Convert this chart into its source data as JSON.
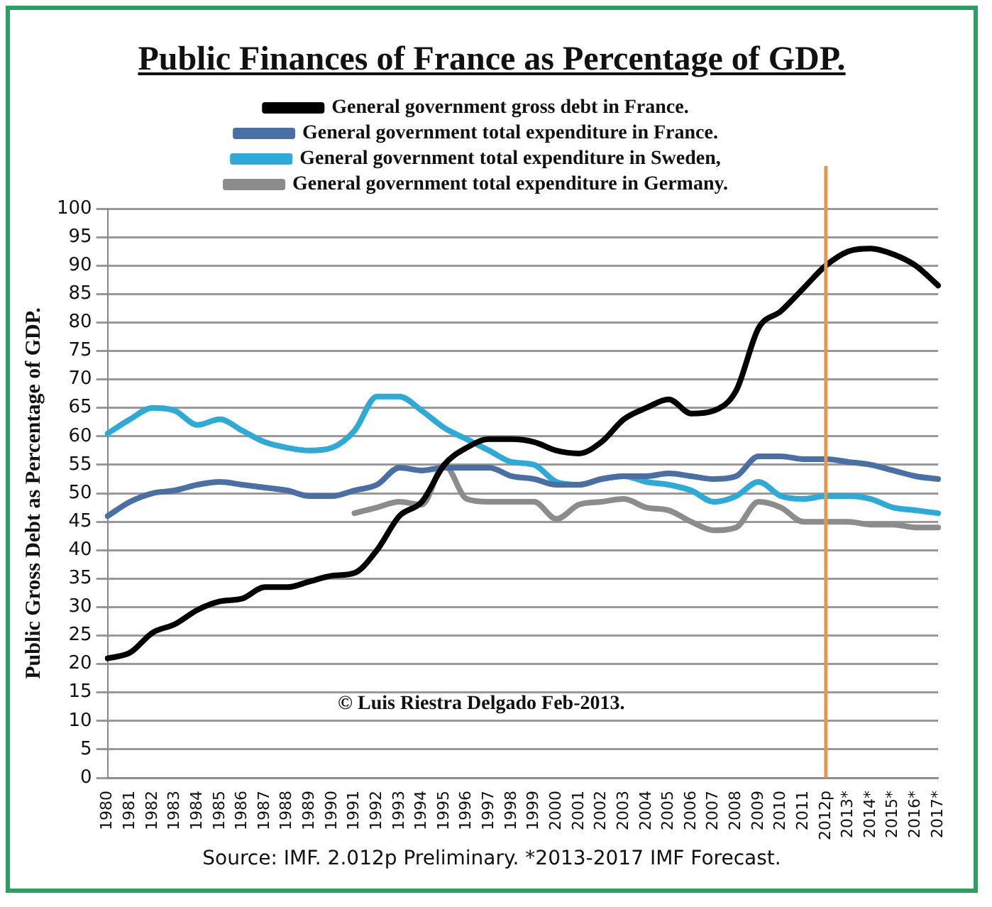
{
  "chart_data": {
    "type": "line",
    "title": "Public Finances of France as Percentage of GDP.",
    "ylabel": "Public Gross Debt as Percentage of GDP.",
    "categories": [
      "1980",
      "1981",
      "1982",
      "1983",
      "1984",
      "1985",
      "1986",
      "1987",
      "1988",
      "1989",
      "1990",
      "1991",
      "1992",
      "1993",
      "1994",
      "1995",
      "1996",
      "1997",
      "1998",
      "1999",
      "2000",
      "2001",
      "2002",
      "2003",
      "2004",
      "2005",
      "2006",
      "2007",
      "2008",
      "2009",
      "2010",
      "2011",
      "2012p",
      "2013*",
      "2014*",
      "2015*",
      "2016*",
      "2017*"
    ],
    "series": [
      {
        "name": "General government gross debt in France.",
        "color": "#000000",
        "values": [
          21,
          22,
          25.5,
          27,
          29.5,
          31,
          31.5,
          33.5,
          33.5,
          34.5,
          35.5,
          36,
          40,
          46,
          48.5,
          55,
          58,
          59.5,
          59.5,
          59,
          57.5,
          57,
          59,
          63,
          65,
          66.5,
          64,
          64.5,
          68,
          79,
          82,
          86,
          90,
          92.5,
          93,
          92,
          90,
          86.5
        ]
      },
      {
        "name": "General government total expenditure in France.",
        "color": "#4a6fa5",
        "values": [
          46,
          48.5,
          50,
          50.5,
          51.5,
          52,
          51.5,
          51,
          50.5,
          49.5,
          49.5,
          50.5,
          51.5,
          54.5,
          54,
          54.5,
          54.5,
          54.5,
          53,
          52.5,
          51.5,
          51.5,
          52.5,
          53,
          53,
          53.5,
          53,
          52.5,
          53,
          56.5,
          56.5,
          56,
          56,
          55.5,
          55,
          54,
          53,
          52.5
        ]
      },
      {
        "name": "General government total expenditure in Sweden,",
        "color": "#2eaad8",
        "values": [
          60.5,
          63,
          65,
          64.5,
          62,
          63,
          61,
          59,
          58,
          57.5,
          58,
          61,
          67,
          67,
          64.5,
          61.5,
          59.5,
          57.5,
          55.5,
          55,
          52,
          51.5,
          52.5,
          53,
          52,
          51.5,
          50.5,
          48.5,
          49.5,
          52,
          49.5,
          49,
          49.5,
          49.5,
          49,
          47.5,
          47,
          46.5
        ]
      },
      {
        "name": "General government total expenditure in Germany.",
        "color": "#8c8c8c",
        "values": [
          null,
          null,
          null,
          null,
          null,
          null,
          null,
          null,
          null,
          null,
          null,
          46.5,
          47.5,
          48.5,
          48,
          55,
          49,
          48.5,
          48.5,
          48.5,
          45.5,
          48,
          48.5,
          49,
          47.5,
          47,
          45,
          43.5,
          44,
          48.5,
          47.5,
          45,
          45,
          45,
          44.5,
          44.5,
          44,
          44
        ]
      }
    ],
    "ylim": [
      0,
      100
    ],
    "yticks": [
      0,
      5,
      10,
      15,
      20,
      25,
      30,
      35,
      40,
      45,
      50,
      55,
      60,
      65,
      70,
      75,
      80,
      85,
      90,
      95,
      100
    ],
    "grid": "y",
    "legend": "top",
    "marker": "none",
    "line_style": "solid",
    "ref_lines": [
      {
        "axis": "x",
        "value": "2012p",
        "color": "#e8964a"
      }
    ],
    "annotations": [
      "© Luis Riestra Delgado Feb-2013.",
      "Source: IMF. 2.012p Preliminary. *2013-2017 IMF Forecast."
    ]
  }
}
